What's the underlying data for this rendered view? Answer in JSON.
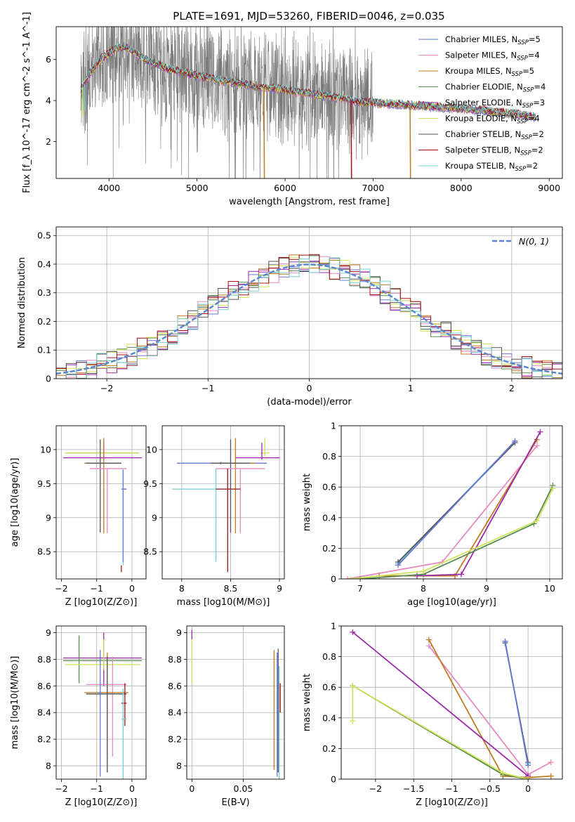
{
  "figure": {
    "title": "PLATE=1691, MJD=53260, FIBERID=0046, z=0.035"
  },
  "colors": {
    "model_palette": [
      "#6a78d8",
      "#e58ac0",
      "#c07a20",
      "#5a8a52",
      "#9a2aa8",
      "#cfe35a",
      "#555555",
      "#a01010",
      "#74cfd3"
    ],
    "data_spectrum": "#7a7a7a",
    "gauss": "#5b87d0",
    "grid": "#b0b0b0"
  },
  "chart_data": [
    {
      "id": "spectrum",
      "type": "line",
      "xlabel": "wavelength [Angstrom, rest frame]",
      "ylabel": "Flux [f_λ 10^-17 erg cm^-2 s^-1 A^-1]",
      "xlim": [
        3400,
        9150
      ],
      "ylim": [
        0.2,
        7.6
      ],
      "xticks": [
        4000,
        5000,
        6000,
        7000,
        8000,
        9000
      ],
      "yticks": [
        2,
        4,
        6
      ],
      "legend_placement": "top-right",
      "legend": [
        {
          "name": "Chabrier MILES, N",
          "sub": "SSP",
          "val": "=5"
        },
        {
          "name": "Salpeter MILES, N",
          "sub": "SSP",
          "val": "=4"
        },
        {
          "name": "Kroupa MILES, N",
          "sub": "SSP",
          "val": "=5"
        },
        {
          "name": "Chabrier ELODIE, N",
          "sub": "SSP",
          "val": "=4"
        },
        {
          "name": "Salpeter ELODIE, N",
          "sub": "SSP",
          "val": "=3"
        },
        {
          "name": "Kroupa ELODIE, N",
          "sub": "SSP",
          "val": "=4"
        },
        {
          "name": "Chabrier STELIB, N",
          "sub": "SSP",
          "val": "=2"
        },
        {
          "name": "Salpeter STELIB, N",
          "sub": "SSP",
          "val": "=2"
        },
        {
          "name": "Kroupa STELIB, N",
          "sub": "SSP",
          "val": "=2"
        }
      ],
      "data_range": [
        3680,
        8850
      ],
      "continuum": [
        [
          3680,
          4.5
        ],
        [
          3780,
          5.3
        ],
        [
          3900,
          6.0
        ],
        [
          4000,
          6.3
        ],
        [
          4100,
          6.6
        ],
        [
          4200,
          6.6
        ],
        [
          4400,
          6.0
        ],
        [
          4700,
          5.5
        ],
        [
          5000,
          5.2
        ],
        [
          5500,
          4.8
        ],
        [
          6000,
          4.5
        ],
        [
          6500,
          4.2
        ],
        [
          6900,
          3.9
        ],
        [
          7500,
          3.75
        ],
        [
          8000,
          3.6
        ],
        [
          8500,
          3.4
        ],
        [
          8850,
          3.2
        ]
      ],
      "model_dips": [
        {
          "series": 2,
          "x": 5760,
          "y": 0.2
        },
        {
          "series": 7,
          "x": 6750,
          "y": 0.2
        },
        {
          "series": 2,
          "x": 7420,
          "y": 0.2
        },
        {
          "series": 5,
          "x": 3700,
          "y": 3.2
        },
        {
          "series": 8,
          "x": 3720,
          "y": 3.5
        }
      ]
    },
    {
      "id": "residuals",
      "type": "histogram",
      "xlabel": "(data-model)/error",
      "ylabel": "Normed distribution",
      "xlim": [
        -2.5,
        2.5
      ],
      "ylim": [
        0,
        0.53
      ],
      "xticks": [
        -2,
        -1,
        0,
        1,
        2
      ],
      "yticks": [
        0.0,
        0.1,
        0.2,
        0.3,
        0.4,
        0.5
      ],
      "bin_width": 0.1,
      "legend_placement": "top-right",
      "gauss_label": "N(0, 1)",
      "noise_amplitude": 0.04
    },
    {
      "id": "age_vs_Z",
      "type": "errorbar",
      "xlabel": "Z [log10(Z/Z⊙)]",
      "ylabel": "age [log10(age/yr)]",
      "xlim": [
        -2.15,
        0.4
      ],
      "ylim": [
        8.1,
        10.35
      ],
      "xticks": [
        -2,
        -1,
        0
      ],
      "yticks": [
        8.5,
        9.0,
        9.5,
        10.0
      ],
      "points": [
        {
          "s": 3,
          "x": -0.8,
          "y": 9.95,
          "xl": -1.9,
          "xh": 0.2,
          "yl": 9.9,
          "yh": 10.0
        },
        {
          "s": 5,
          "x": -0.8,
          "y": 9.95,
          "xl": -1.9,
          "xh": 0.2,
          "yl": 9.9,
          "yh": 10.17
        },
        {
          "s": 4,
          "x": -0.8,
          "y": 9.88,
          "xl": -1.95,
          "xh": 0.28,
          "yl": 9.85,
          "yh": 10.1
        },
        {
          "s": 2,
          "x": -0.8,
          "y": 9.8,
          "xl": -1.35,
          "xh": -0.35,
          "yl": 8.77,
          "yh": 10.17
        },
        {
          "s": 6,
          "x": -0.9,
          "y": 9.8,
          "xl": -1.3,
          "xh": -0.3,
          "yl": 8.78,
          "yh": 10.15
        },
        {
          "s": 1,
          "x": -0.7,
          "y": 9.72,
          "xl": -1.2,
          "xh": -0.15,
          "yl": 8.77,
          "yh": 9.72
        },
        {
          "s": 8,
          "x": -0.25,
          "y": 9.42,
          "xl": -0.3,
          "xh": -0.15,
          "yl": 8.3,
          "yh": 9.72
        },
        {
          "s": 0,
          "x": -0.25,
          "y": 9.42,
          "xl": -0.3,
          "xh": -0.15,
          "yl": 8.35,
          "yh": 9.7
        },
        {
          "s": 7,
          "x": -0.3,
          "y": 8.3,
          "xl": -0.3,
          "xh": -0.3,
          "yl": 8.2,
          "yh": 8.3
        }
      ]
    },
    {
      "id": "age_vs_mass",
      "type": "errorbar",
      "xlabel": "mass [log10(M/M⊙)]",
      "ylabel": "",
      "xlim": [
        7.8,
        9.05
      ],
      "ylim": [
        8.1,
        10.35
      ],
      "xticks": [
        8.0,
        8.5,
        9.0
      ],
      "yticks": [
        8.5,
        9.0,
        9.5,
        10.0
      ],
      "points": [
        {
          "s": 5,
          "x": 8.85,
          "y": 9.95,
          "xl": 8.8,
          "xh": 8.9,
          "yl": 9.9,
          "yh": 10.17
        },
        {
          "s": 4,
          "x": 8.82,
          "y": 9.88,
          "xl": 8.55,
          "xh": 9.0,
          "yl": 9.85,
          "yh": 10.1
        },
        {
          "s": 0,
          "x": 8.4,
          "y": 9.8,
          "xl": 7.95,
          "xh": 8.87,
          "yl": 9.78,
          "yh": 9.82
        },
        {
          "s": 2,
          "x": 8.55,
          "y": 9.8,
          "xl": 8.35,
          "xh": 8.75,
          "yl": 8.77,
          "yh": 10.17
        },
        {
          "s": 6,
          "x": 8.5,
          "y": 9.8,
          "xl": 8.3,
          "xh": 8.7,
          "yl": 8.78,
          "yh": 10.15
        },
        {
          "s": 1,
          "x": 8.6,
          "y": 9.72,
          "xl": 8.35,
          "xh": 8.85,
          "yl": 8.77,
          "yh": 9.72
        },
        {
          "s": 8,
          "x": 8.35,
          "y": 9.42,
          "xl": 7.9,
          "xh": 8.55,
          "yl": 8.35,
          "yh": 9.72
        },
        {
          "s": 7,
          "x": 8.47,
          "y": 9.42,
          "xl": 8.35,
          "xh": 8.6,
          "yl": 8.2,
          "yh": 9.72
        }
      ]
    },
    {
      "id": "weight_vs_age",
      "type": "line",
      "xlabel": "age [log10(age/yr)]",
      "ylabel": "mass weight",
      "xlim": [
        6.7,
        10.2
      ],
      "ylim": [
        0,
        1
      ],
      "xticks": [
        7,
        8,
        9,
        10
      ],
      "yticks": [
        0.0,
        0.2,
        0.4,
        0.6,
        0.8,
        1.0
      ],
      "series": [
        {
          "s": 8,
          "points": [
            [
              7.6,
              0.1
            ],
            [
              9.45,
              0.9
            ]
          ]
        },
        {
          "s": 6,
          "points": [
            [
              7.6,
              0.11
            ],
            [
              9.45,
              0.89
            ]
          ]
        },
        {
          "s": 0,
          "points": [
            [
              7.6,
              0.09
            ],
            [
              9.45,
              0.9
            ]
          ]
        },
        {
          "s": 1,
          "points": [
            [
              6.8,
              0.0
            ],
            [
              8.3,
              0.11
            ],
            [
              9.8,
              0.87
            ]
          ]
        },
        {
          "s": 2,
          "points": [
            [
              7.3,
              0.02
            ],
            [
              8.5,
              0.02
            ],
            [
              9.8,
              0.91
            ]
          ]
        },
        {
          "s": 4,
          "points": [
            [
              7.9,
              0.02
            ],
            [
              8.6,
              0.03
            ],
            [
              9.85,
              0.96
            ]
          ]
        },
        {
          "s": 3,
          "points": [
            [
              7.0,
              0.0
            ],
            [
              8.0,
              0.03
            ],
            [
              9.75,
              0.36
            ],
            [
              10.05,
              0.61
            ]
          ]
        },
        {
          "s": 5,
          "points": [
            [
              6.85,
              0.0
            ],
            [
              8.0,
              0.05
            ],
            [
              9.8,
              0.38
            ],
            [
              10.05,
              0.59
            ]
          ]
        }
      ]
    },
    {
      "id": "mass_vs_Z",
      "type": "errorbar",
      "xlabel": "Z [log10(Z/Z⊙)]",
      "ylabel": "mass [log10(M/M⊙)]",
      "xlim": [
        -2.15,
        0.4
      ],
      "ylim": [
        7.9,
        9.05
      ],
      "xticks": [
        -2,
        -1,
        0
      ],
      "yticks": [
        8.0,
        8.2,
        8.4,
        8.6,
        8.8,
        9.0
      ],
      "points": [
        {
          "s": 4,
          "x": -0.8,
          "y": 8.81,
          "xl": -1.95,
          "xh": 0.28,
          "yl": 8.6,
          "yh": 9.0
        },
        {
          "s": 3,
          "x": -1.5,
          "y": 8.79,
          "xl": -1.95,
          "xh": 0.28,
          "yl": 8.62,
          "yh": 8.98
        },
        {
          "s": 5,
          "x": -0.8,
          "y": 8.76,
          "xl": -1.9,
          "xh": 0.25,
          "yl": 8.72,
          "yh": 8.95
        },
        {
          "s": 1,
          "x": -0.55,
          "y": 8.61,
          "xl": -1.3,
          "xh": -0.15,
          "yl": 8.07,
          "yh": 8.82
        },
        {
          "s": 2,
          "x": -0.7,
          "y": 8.55,
          "xl": -1.35,
          "xh": -0.1,
          "yl": 7.95,
          "yh": 8.85
        },
        {
          "s": 6,
          "x": -0.7,
          "y": 8.54,
          "xl": -1.3,
          "xh": -0.15,
          "yl": 7.95,
          "yh": 8.82
        },
        {
          "s": 0,
          "x": -0.9,
          "y": 8.55,
          "xl": -0.95,
          "xh": -0.85,
          "yl": 7.92,
          "yh": 8.87
        },
        {
          "s": 7,
          "x": -0.2,
          "y": 8.47,
          "xl": -0.3,
          "xh": -0.15,
          "yl": 8.3,
          "yh": 8.62
        },
        {
          "s": 8,
          "x": -0.25,
          "y": 8.35,
          "xl": -0.3,
          "xh": -0.15,
          "yl": 7.9,
          "yh": 8.58
        }
      ]
    },
    {
      "id": "mass_vs_ebv",
      "type": "errorbar",
      "xlabel": "E(B-V)",
      "ylabel": "",
      "xlim": [
        -0.005,
        0.09
      ],
      "ylim": [
        7.9,
        9.05
      ],
      "xticks": [
        0.0,
        0.05
      ],
      "yticks": [
        8.0,
        8.2,
        8.4,
        8.6,
        8.8,
        9.0
      ],
      "points": [
        {
          "s": 4,
          "x": 0.0,
          "y": 8.97,
          "xl": 0.0,
          "xh": 0.0,
          "yl": 8.95,
          "yh": 9.02
        },
        {
          "s": 5,
          "x": 0.0,
          "y": 8.78,
          "xl": 0.0,
          "xh": 0.0,
          "yl": 8.62,
          "yh": 8.95
        },
        {
          "s": 2,
          "x": 0.08,
          "y": 8.55,
          "xl": 0.08,
          "xh": 0.08,
          "yl": 7.97,
          "yh": 8.87
        },
        {
          "s": 0,
          "x": 0.083,
          "y": 8.55,
          "xl": 0.083,
          "xh": 0.083,
          "yl": 7.92,
          "yh": 8.85
        },
        {
          "s": 8,
          "x": 0.085,
          "y": 8.35,
          "xl": 0.085,
          "xh": 0.085,
          "yl": 7.9,
          "yh": 8.75
        },
        {
          "s": 6,
          "x": 0.084,
          "y": 8.5,
          "xl": 0.084,
          "xh": 0.084,
          "yl": 7.95,
          "yh": 8.88
        },
        {
          "s": 7,
          "x": 0.086,
          "y": 8.55,
          "xl": 0.086,
          "xh": 0.086,
          "yl": 8.4,
          "yh": 8.62
        }
      ]
    },
    {
      "id": "weight_vs_Z",
      "type": "line",
      "xlabel": "Z [log10(Z/Z⊙)]",
      "ylabel": "mass weight",
      "xlim": [
        -2.45,
        0.45
      ],
      "ylim": [
        0,
        1
      ],
      "xticks": [
        -2.0,
        -1.5,
        -1.0,
        -0.5,
        0.0
      ],
      "yticks": [
        0.0,
        0.2,
        0.4,
        0.6,
        0.8,
        1.0
      ],
      "series": [
        {
          "s": 8,
          "points": [
            [
              -0.3,
              0.9
            ],
            [
              0.0,
              0.1
            ]
          ]
        },
        {
          "s": 6,
          "points": [
            [
              -0.3,
              0.89
            ],
            [
              0.0,
              0.11
            ]
          ]
        },
        {
          "s": 0,
          "points": [
            [
              -0.3,
              0.9
            ],
            [
              0.0,
              0.09
            ]
          ]
        },
        {
          "s": 1,
          "points": [
            [
              -1.3,
              0.87
            ],
            [
              0.0,
              0.03
            ],
            [
              0.3,
              0.11
            ]
          ]
        },
        {
          "s": 2,
          "points": [
            [
              -1.3,
              0.91
            ],
            [
              -0.33,
              0.02
            ],
            [
              0.0,
              0.01
            ],
            [
              0.3,
              0.02
            ]
          ]
        },
        {
          "s": 4,
          "points": [
            [
              -2.3,
              0.96
            ],
            [
              0.0,
              0.02
            ]
          ]
        },
        {
          "s": 3,
          "points": [
            [
              -2.3,
              0.61
            ],
            [
              -0.33,
              0.03
            ],
            [
              0.0,
              0.0
            ]
          ]
        },
        {
          "s": 5,
          "points": [
            [
              -2.3,
              0.38
            ],
            [
              -2.3,
              0.61
            ],
            [
              -0.33,
              0.04
            ],
            [
              0.0,
              0.0
            ]
          ]
        }
      ]
    }
  ]
}
